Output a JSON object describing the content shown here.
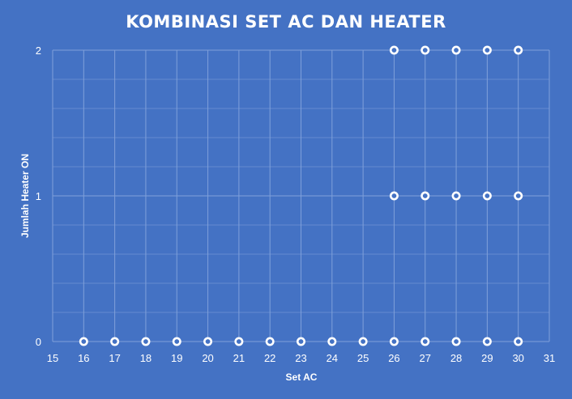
{
  "chart_data": {
    "type": "scatter",
    "title": "KOMBINASI SET AC DAN HEATER",
    "xlabel": "Set AC",
    "ylabel": "Jumlah Heater ON",
    "xlim": [
      15,
      31
    ],
    "ylim": [
      0,
      2
    ],
    "x_ticks": [
      "15",
      "16",
      "17",
      "18",
      "19",
      "20",
      "21",
      "22",
      "23",
      "24",
      "25",
      "26",
      "27",
      "28",
      "29",
      "30",
      "31"
    ],
    "y_ticks": [
      "0",
      "1",
      "2"
    ],
    "grid": true,
    "legend": "none",
    "colors": {
      "background": "#4472C4",
      "marker_fill": "#4472C4",
      "marker_stroke": "#FFFFFF",
      "grid": "#7FA0DA",
      "text": "#FFFFFF"
    },
    "points": [
      {
        "x": 16,
        "y": 0
      },
      {
        "x": 17,
        "y": 0
      },
      {
        "x": 18,
        "y": 0
      },
      {
        "x": 19,
        "y": 0
      },
      {
        "x": 20,
        "y": 0
      },
      {
        "x": 21,
        "y": 0
      },
      {
        "x": 22,
        "y": 0
      },
      {
        "x": 23,
        "y": 0
      },
      {
        "x": 24,
        "y": 0
      },
      {
        "x": 25,
        "y": 0
      },
      {
        "x": 26,
        "y": 0
      },
      {
        "x": 27,
        "y": 0
      },
      {
        "x": 28,
        "y": 0
      },
      {
        "x": 29,
        "y": 0
      },
      {
        "x": 30,
        "y": 0
      },
      {
        "x": 26,
        "y": 1
      },
      {
        "x": 27,
        "y": 1
      },
      {
        "x": 28,
        "y": 1
      },
      {
        "x": 29,
        "y": 1
      },
      {
        "x": 30,
        "y": 1
      },
      {
        "x": 26,
        "y": 2
      },
      {
        "x": 27,
        "y": 2
      },
      {
        "x": 28,
        "y": 2
      },
      {
        "x": 29,
        "y": 2
      },
      {
        "x": 30,
        "y": 2
      }
    ]
  }
}
